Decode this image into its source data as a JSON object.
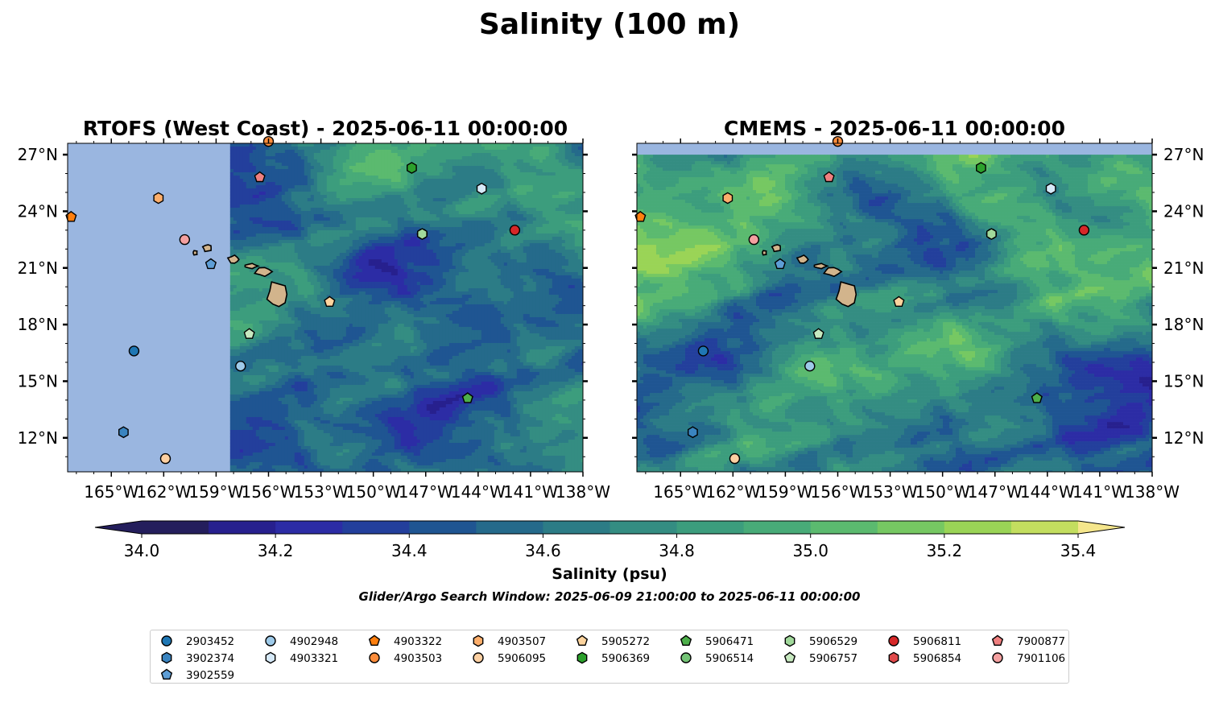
{
  "figure": {
    "suptitle": "Salinity (100 m)",
    "search_window": "Glider/Argo Search Window: 2025-06-09 21:00:00 to 2025-06-11 00:00:00"
  },
  "colors": {
    "land": "#d2b48c",
    "nodata": "#9ab6e0",
    "palette": [
      "#241e5c",
      "#27208e",
      "#2c2ca5",
      "#233f9c",
      "#1f5592",
      "#256a8b",
      "#2c7c86",
      "#348d82",
      "#3c9d7d",
      "#48ab78",
      "#5bba6f",
      "#76c862",
      "#9ad456",
      "#c3de5f",
      "#f5e68c"
    ]
  },
  "chart_data": [
    {
      "type": "heatmap",
      "title": "RTOFS (West Coast) - 2025-06-11 00:00:00",
      "x_ticks": [
        "165°W",
        "162°W",
        "159°W",
        "156°W",
        "153°W",
        "150°W",
        "147°W",
        "144°W",
        "141°W",
        "138°W"
      ],
      "y_ticks": [
        "27°N",
        "24°N",
        "21°N",
        "18°N",
        "15°N",
        "12°N"
      ],
      "xlim": [
        -167.5,
        -138
      ],
      "ylim": [
        10.2,
        27.6
      ],
      "model_domain_west_edge_lon": -158.2,
      "floats": [
        {
          "id": "2903452",
          "lon": -163.7,
          "lat": 16.6
        },
        {
          "id": "3902374",
          "lon": -164.3,
          "lat": 12.3
        },
        {
          "id": "3902559",
          "lon": -159.3,
          "lat": 21.2
        },
        {
          "id": "4902948",
          "lon": -157.6,
          "lat": 15.8
        },
        {
          "id": "4903321",
          "lon": -143.8,
          "lat": 25.2
        },
        {
          "id": "4903322",
          "lon": -167.3,
          "lat": 23.7
        },
        {
          "id": "4903503",
          "lon": -156.0,
          "lat": 27.7
        },
        {
          "id": "4903507",
          "lon": -162.3,
          "lat": 24.7
        },
        {
          "id": "5906095",
          "lon": -161.9,
          "lat": 10.9
        },
        {
          "id": "5905272",
          "lon": -152.5,
          "lat": 19.2
        },
        {
          "id": "5906369",
          "lon": -147.8,
          "lat": 26.3
        },
        {
          "id": "5906471",
          "lon": -144.6,
          "lat": 14.1
        },
        {
          "id": "5906514",
          "lon": -147.2,
          "lat": 22.8
        },
        {
          "id": "5906529",
          "lon": -147.2,
          "lat": 22.8
        },
        {
          "id": "5906757",
          "lon": -157.1,
          "lat": 17.5
        },
        {
          "id": "5906811",
          "lon": -141.9,
          "lat": 23.0
        },
        {
          "id": "7900877",
          "lon": -156.5,
          "lat": 25.8
        },
        {
          "id": "7901106",
          "lon": -160.8,
          "lat": 22.5
        }
      ]
    },
    {
      "type": "heatmap",
      "title": "CMEMS - 2025-06-11 00:00:00",
      "x_ticks": [
        "165°W",
        "162°W",
        "159°W",
        "156°W",
        "153°W",
        "150°W",
        "147°W",
        "144°W",
        "141°W",
        "138°W"
      ],
      "y_ticks": [
        "27°N",
        "24°N",
        "21°N",
        "18°N",
        "15°N",
        "12°N"
      ],
      "xlim": [
        -167.5,
        -138
      ],
      "ylim": [
        10.2,
        27.6
      ],
      "model_domain_north_edge_lat": 27.0,
      "floats": [
        {
          "id": "2903452",
          "lon": -163.7,
          "lat": 16.6
        },
        {
          "id": "3902374",
          "lon": -164.3,
          "lat": 12.3
        },
        {
          "id": "3902559",
          "lon": -159.3,
          "lat": 21.2
        },
        {
          "id": "4902948",
          "lon": -157.6,
          "lat": 15.8
        },
        {
          "id": "4903321",
          "lon": -143.8,
          "lat": 25.2
        },
        {
          "id": "4903322",
          "lon": -167.3,
          "lat": 23.7
        },
        {
          "id": "4903503",
          "lon": -156.0,
          "lat": 27.7
        },
        {
          "id": "4903507",
          "lon": -162.3,
          "lat": 24.7
        },
        {
          "id": "5906095",
          "lon": -161.9,
          "lat": 10.9
        },
        {
          "id": "5905272",
          "lon": -152.5,
          "lat": 19.2
        },
        {
          "id": "5906369",
          "lon": -147.8,
          "lat": 26.3
        },
        {
          "id": "5906471",
          "lon": -144.6,
          "lat": 14.1
        },
        {
          "id": "5906514",
          "lon": -147.2,
          "lat": 22.8
        },
        {
          "id": "5906529",
          "lon": -147.2,
          "lat": 22.8
        },
        {
          "id": "5906757",
          "lon": -157.1,
          "lat": 17.5
        },
        {
          "id": "5906811",
          "lon": -141.9,
          "lat": 23.0
        },
        {
          "id": "7900877",
          "lon": -156.5,
          "lat": 25.8
        },
        {
          "id": "7901106",
          "lon": -160.8,
          "lat": 22.5
        }
      ]
    }
  ],
  "colorbar": {
    "label": "Salinity (psu)",
    "ticks": [
      "34.0",
      "34.2",
      "34.4",
      "34.6",
      "34.8",
      "35.0",
      "35.2",
      "35.4"
    ],
    "range": [
      34.0,
      35.4
    ],
    "step": 0.1,
    "extend": "both"
  },
  "legend": {
    "placement": "bottom-center",
    "columns": 9,
    "entries": [
      {
        "label": "2903452",
        "marker": "circle",
        "color": "#1f77b4"
      },
      {
        "label": "3902374",
        "marker": "hexagon",
        "color": "#3a84c0"
      },
      {
        "label": "3902559",
        "marker": "pentagon",
        "color": "#5e9ed6"
      },
      {
        "label": "4902948",
        "marker": "circle",
        "color": "#9ecae9"
      },
      {
        "label": "4903321",
        "marker": "hexagon",
        "color": "#d6e9f8"
      },
      {
        "label": "4903322",
        "marker": "pentagon",
        "color": "#ff7f0e"
      },
      {
        "label": "4903503",
        "marker": "circle",
        "color": "#fd8d3c"
      },
      {
        "label": "4903507",
        "marker": "hexagon",
        "color": "#fdae6b"
      },
      {
        "label": "5906095",
        "marker": "circle",
        "color": "#fdd0a2"
      },
      {
        "label": "5905272",
        "marker": "pentagon",
        "color": "#fdd49e"
      },
      {
        "label": "5906369",
        "marker": "hexagon",
        "color": "#2ca02c"
      },
      {
        "label": "5906471",
        "marker": "pentagon",
        "color": "#4daf4a"
      },
      {
        "label": "5906514",
        "marker": "circle",
        "color": "#74c476"
      },
      {
        "label": "5906529",
        "marker": "hexagon",
        "color": "#a1d99b"
      },
      {
        "label": "5906757",
        "marker": "pentagon",
        "color": "#c7e9c0"
      },
      {
        "label": "5906811",
        "marker": "circle",
        "color": "#d62728"
      },
      {
        "label": "5906854",
        "marker": "hexagon",
        "color": "#e04a4b"
      },
      {
        "label": "7900877",
        "marker": "pentagon",
        "color": "#f08080"
      },
      {
        "label": "7901106",
        "marker": "circle",
        "color": "#f4a0a0"
      }
    ]
  }
}
